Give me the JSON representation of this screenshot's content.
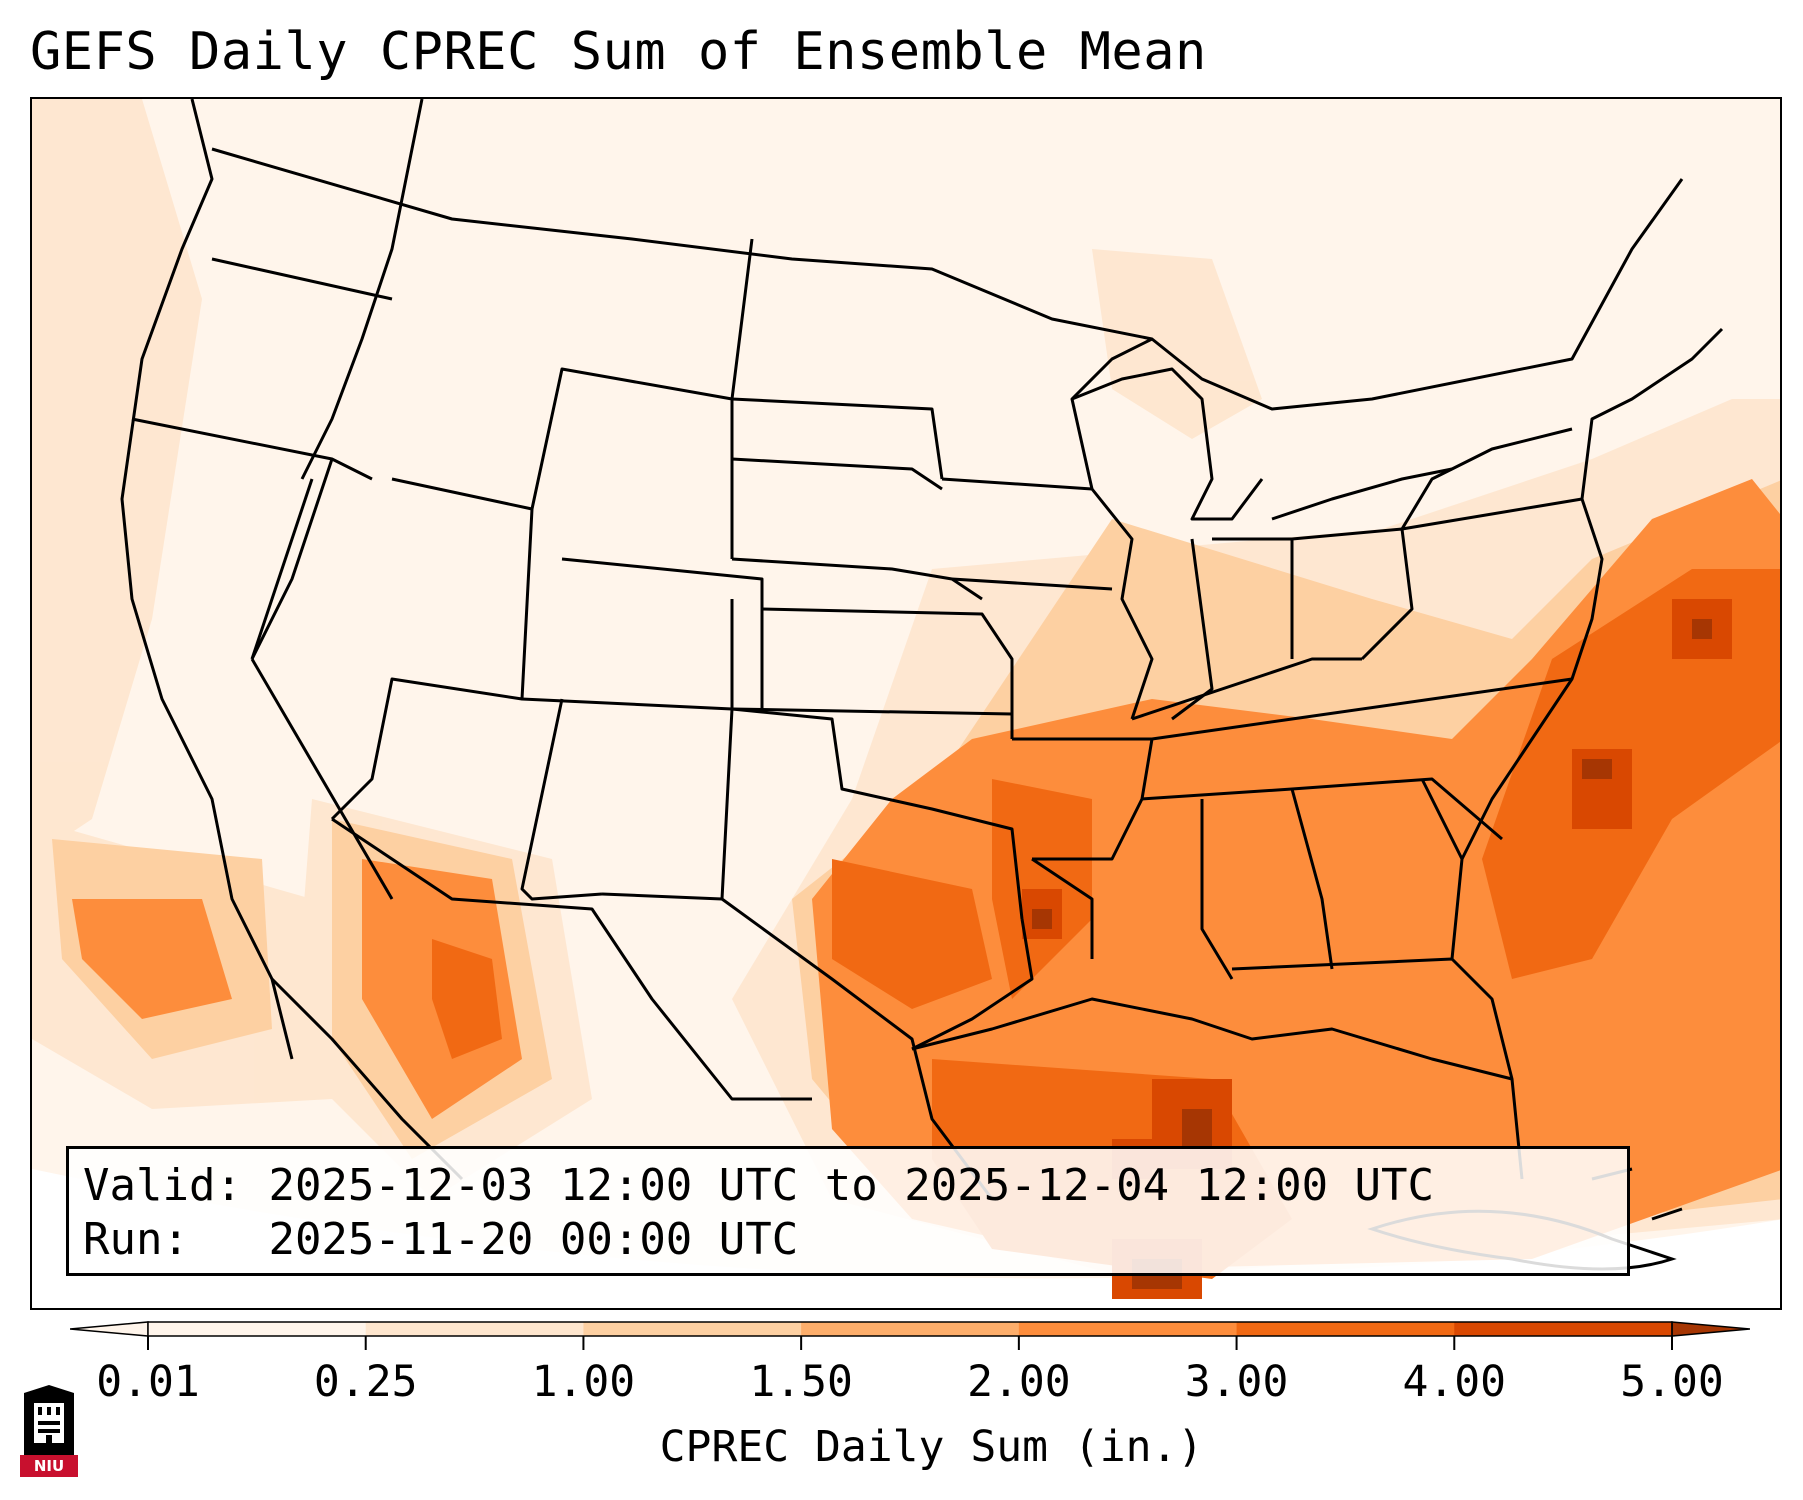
{
  "title": "GEFS Daily CPREC Sum of Ensemble Mean",
  "info": {
    "valid_label": "Valid:",
    "valid_value": "2025-12-03 12:00 UTC to 2025-12-04 12:00 UTC",
    "run_label": "Run:",
    "run_value": "2025-11-20 00:00 UTC"
  },
  "colorbar": {
    "label": "CPREC Daily Sum (in.)",
    "ticks": [
      "0.01",
      "0.25",
      "1.00",
      "1.50",
      "2.00",
      "3.00",
      "4.00",
      "5.00"
    ],
    "colors": [
      "#fff5eb",
      "#fee6ce",
      "#fdd0a2",
      "#fdae6b",
      "#fd8d3c",
      "#f16913",
      "#d94801",
      "#a63603"
    ],
    "extend": "both"
  },
  "map": {
    "projection": "Lambert conformal, CONUS",
    "colors": {
      "land_low": "#fff5eb",
      "light": "#fee6ce",
      "medium": "#fdd0a2",
      "orange": "#fd8d3c",
      "dark": "#f16913",
      "darker": "#d94801",
      "darkest": "#a63603",
      "border": "#000000"
    }
  },
  "logo": {
    "wordmark": "NIU"
  }
}
